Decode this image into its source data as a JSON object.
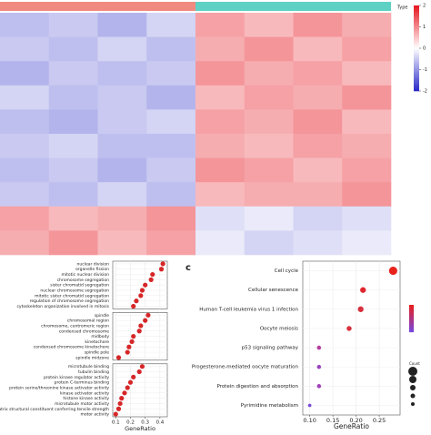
{
  "chart_data": [
    {
      "type": "heatmap",
      "legend_title": "Type",
      "group_colors": [
        "#f08a80",
        "#5fd1c4"
      ],
      "values": [
        [
          -0.6,
          -0.5,
          -0.7,
          -0.4,
          0.8,
          0.6,
          0.9,
          0.7
        ],
        [
          -0.5,
          -0.6,
          -0.4,
          -0.6,
          0.7,
          0.9,
          0.6,
          0.8
        ],
        [
          -0.7,
          -0.5,
          -0.6,
          -0.5,
          0.9,
          0.7,
          0.8,
          0.6
        ],
        [
          -0.4,
          -0.6,
          -0.5,
          -0.7,
          0.6,
          0.8,
          0.7,
          0.9
        ],
        [
          -0.6,
          -0.7,
          -0.5,
          -0.4,
          0.8,
          0.7,
          0.9,
          0.6
        ],
        [
          -0.5,
          -0.4,
          -0.6,
          -0.6,
          0.7,
          0.6,
          0.8,
          0.7
        ],
        [
          -0.6,
          -0.5,
          -0.7,
          -0.5,
          0.9,
          0.8,
          0.6,
          0.8
        ],
        [
          -0.5,
          -0.6,
          -0.4,
          -0.6,
          0.6,
          0.7,
          0.7,
          0.9
        ],
        [
          0.8,
          0.6,
          0.7,
          0.9,
          -0.3,
          -0.2,
          -0.4,
          -0.3
        ],
        [
          0.7,
          0.9,
          0.6,
          0.8,
          -0.2,
          -0.4,
          -0.3,
          -0.2
        ]
      ],
      "clim": [
        -2,
        2
      ],
      "cticks": [
        2,
        1,
        0,
        -1,
        -2
      ]
    },
    {
      "type": "dot",
      "xlabel": "GeneRatio",
      "xlim": [
        0.08,
        0.45
      ],
      "xticks": [
        0.1,
        0.2,
        0.3,
        0.4
      ],
      "facets": [
        {
          "categories": [
            "nuclear division",
            "organelle fission",
            "mitotic nuclear division",
            "chromosome segregation",
            "sister chromatid segregation",
            "nuclear chromosome segregation",
            "mitotic sister chromatid segregation",
            "regulation of chromosome segregation",
            "cytoskeleton organization involved in mitosis"
          ],
          "values": [
            0.42,
            0.41,
            0.35,
            0.34,
            0.3,
            0.28,
            0.27,
            0.24,
            0.22
          ]
        },
        {
          "categories": [
            "spindle",
            "chromosomal region",
            "chromosome, centromeric region",
            "condensed chromosome",
            "midbody",
            "kinetochore",
            "condensed chromosome kinetochore",
            "spindle pole",
            "spindle midzone"
          ],
          "values": [
            0.32,
            0.3,
            0.27,
            0.26,
            0.22,
            0.21,
            0.19,
            0.18,
            0.12
          ]
        },
        {
          "categories": [
            "microtubule binding",
            "tubulin binding",
            "protein kinase regulator activity",
            "protein C-terminus binding",
            "protein serine/threonine kinase activator activity",
            "kinase activator activity",
            "histone kinase activity",
            "microtubule motor activity",
            "extracellular matrix structural constituent conferring tensile strength",
            "motor activity"
          ],
          "values": [
            0.28,
            0.26,
            0.22,
            0.2,
            0.18,
            0.16,
            0.14,
            0.13,
            0.12,
            0.1
          ]
        }
      ],
      "color": "#d62728"
    },
    {
      "type": "dot",
      "panel_label": "c",
      "xlabel": "GeneRatio",
      "xlim": [
        0.085,
        0.295
      ],
      "xticks": [
        {
          "value": 0.1,
          "label": "0.10"
        },
        {
          "value": 0.15,
          "label": "0.15"
        },
        {
          "value": 0.2,
          "label": "0.20"
        },
        {
          "value": 0.25,
          "label": "0.25"
        }
      ],
      "facets": [
        {
          "categories": [
            "Cell cycle",
            "Cellular senescence",
            "Human T-cell leukemia virus 1 infection",
            "Oocyte meiosis",
            "p53 signaling pathway",
            "Progesterone-mediated oocyte maturation",
            "Protein digestion and absorption",
            "Pyrimidine metabolism"
          ],
          "values": [
            0.28,
            0.215,
            0.21,
            0.185,
            0.12,
            0.12,
            0.12,
            0.1
          ],
          "colors": [
            "#e8221c",
            "#e0282e",
            "#d8303c",
            "#d8303c",
            "#b43c9c",
            "#9c44c0",
            "#a040b8",
            "#7a4ad8"
          ],
          "sizes": [
            10,
            7,
            7,
            6,
            5,
            5,
            5,
            4
          ]
        }
      ],
      "legend_size_title": "Count"
    }
  ]
}
